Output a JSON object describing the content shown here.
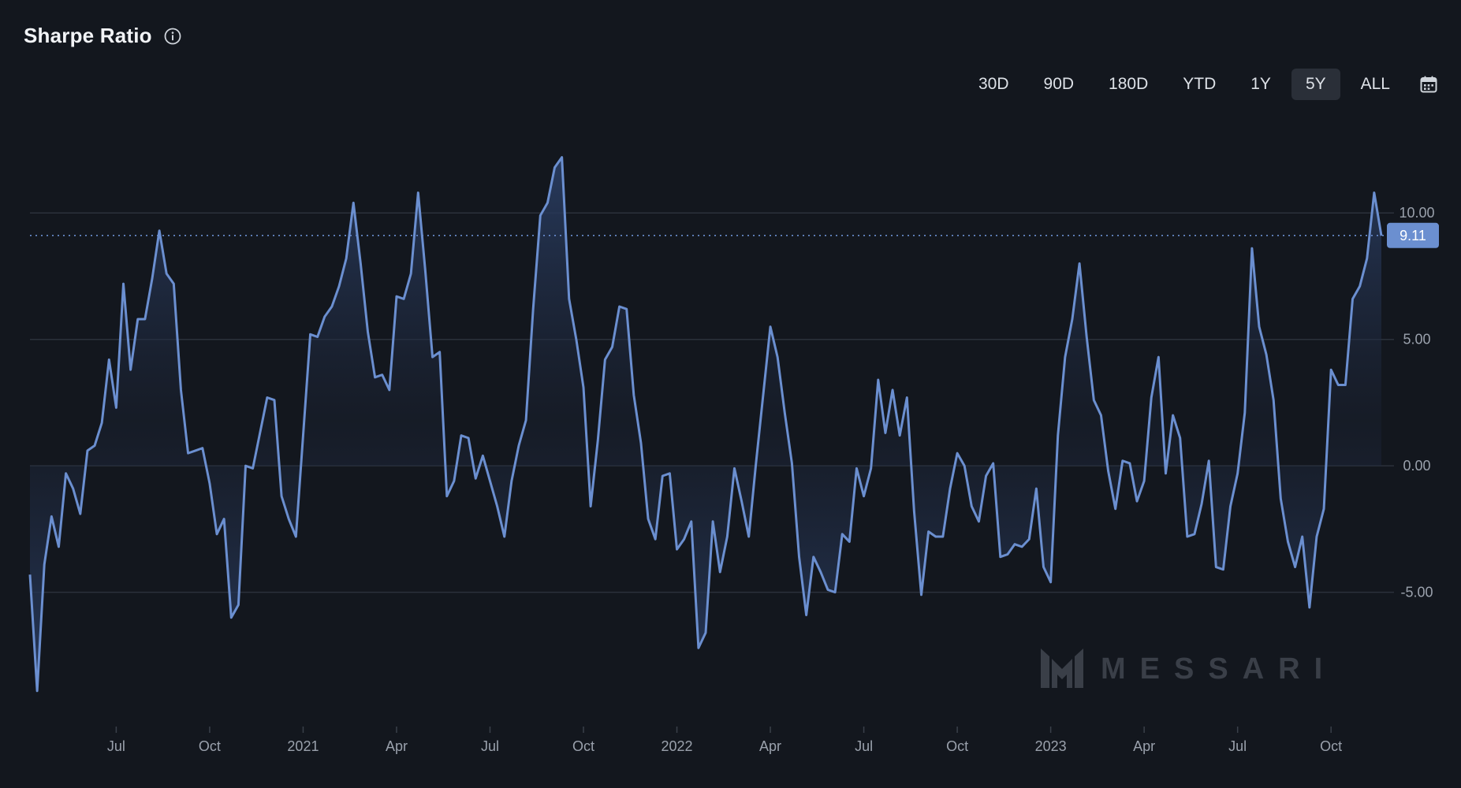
{
  "header": {
    "title": "Sharpe Ratio"
  },
  "range_buttons": [
    {
      "label": "30D",
      "active": false
    },
    {
      "label": "90D",
      "active": false
    },
    {
      "label": "180D",
      "active": false
    },
    {
      "label": "YTD",
      "active": false
    },
    {
      "label": "1Y",
      "active": false
    },
    {
      "label": "5Y",
      "active": true
    },
    {
      "label": "ALL",
      "active": false
    }
  ],
  "watermark": "MESSARI",
  "colors": {
    "background": "#13171e",
    "line": "#6b8fd0",
    "fill_top": "#2a3e64",
    "grid": "#2b313b",
    "badge": "#6b8fd0"
  },
  "chart_data": {
    "type": "area",
    "title": "Sharpe Ratio",
    "ylim": [
      -9,
      12.5
    ],
    "y_ticks": [
      {
        "value": 10,
        "label": "10.00"
      },
      {
        "value": 5,
        "label": "5.00"
      },
      {
        "value": 0,
        "label": "0.00"
      },
      {
        "value": -5,
        "label": "-5.00"
      }
    ],
    "x_ticks": [
      {
        "index": 12,
        "label": "Jul"
      },
      {
        "index": 25,
        "label": "Oct"
      },
      {
        "index": 38,
        "label": "2021"
      },
      {
        "index": 51,
        "label": "Apr"
      },
      {
        "index": 64,
        "label": "Jul"
      },
      {
        "index": 77,
        "label": "Oct"
      },
      {
        "index": 90,
        "label": "2022"
      },
      {
        "index": 103,
        "label": "Apr"
      },
      {
        "index": 116,
        "label": "Jul"
      },
      {
        "index": 129,
        "label": "Oct"
      },
      {
        "index": 142,
        "label": "2023"
      },
      {
        "index": 155,
        "label": "Apr"
      },
      {
        "index": 168,
        "label": "Jul"
      },
      {
        "index": 181,
        "label": "Oct"
      }
    ],
    "current_value": 9.11,
    "current_label": "9.11",
    "series": [
      {
        "name": "Sharpe Ratio",
        "values": [
          -4.3,
          -8.9,
          -3.9,
          -2.0,
          -3.2,
          -0.3,
          -0.9,
          -1.9,
          0.6,
          0.8,
          1.7,
          4.2,
          2.3,
          7.2,
          3.8,
          5.8,
          5.8,
          7.4,
          9.3,
          7.6,
          7.2,
          3.0,
          0.5,
          0.6,
          0.7,
          -0.7,
          -2.7,
          -2.1,
          -6.0,
          -5.5,
          0.0,
          -0.1,
          1.3,
          2.7,
          2.6,
          -1.2,
          -2.1,
          -2.8,
          1.2,
          5.2,
          5.1,
          5.9,
          6.3,
          7.1,
          8.2,
          10.4,
          8.0,
          5.3,
          3.5,
          3.6,
          3.0,
          6.7,
          6.6,
          7.6,
          10.8,
          7.7,
          4.3,
          4.5,
          -1.2,
          -0.6,
          1.2,
          1.1,
          -0.5,
          0.4,
          -0.6,
          -1.6,
          -2.8,
          -0.6,
          0.8,
          1.8,
          6.2,
          9.9,
          10.4,
          11.8,
          12.2,
          6.6,
          5.0,
          3.1,
          -1.6,
          1.0,
          4.2,
          4.7,
          6.3,
          6.2,
          2.8,
          0.9,
          -2.1,
          -2.9,
          -0.4,
          -0.3,
          -3.3,
          -2.9,
          -2.2,
          -7.2,
          -6.6,
          -2.2,
          -4.2,
          -2.8,
          -0.1,
          -1.4,
          -2.8,
          0.1,
          2.8,
          5.5,
          4.3,
          2.1,
          0.1,
          -3.6,
          -5.9,
          -3.6,
          -4.2,
          -4.9,
          -5.0,
          -2.7,
          -3.0,
          -0.1,
          -1.2,
          -0.1,
          3.4,
          1.3,
          3.0,
          1.2,
          2.7,
          -1.8,
          -5.1,
          -2.6,
          -2.8,
          -2.8,
          -0.9,
          0.5,
          0.0,
          -1.6,
          -2.2,
          -0.4,
          0.1,
          -3.6,
          -3.5,
          -3.1,
          -3.2,
          -2.9,
          -0.9,
          -4.0,
          -4.6,
          1.2,
          4.3,
          5.8,
          8.0,
          5.1,
          2.6,
          2.0,
          -0.2,
          -1.7,
          0.2,
          0.1,
          -1.4,
          -0.6,
          2.7,
          4.3,
          -0.3,
          2.0,
          1.1,
          -2.8,
          -2.7,
          -1.5,
          0.2,
          -4.0,
          -4.1,
          -1.6,
          -0.3,
          2.1,
          8.6,
          5.5,
          4.4,
          2.6,
          -1.3,
          -3.0,
          -4.0,
          -2.8,
          -5.6,
          -2.8,
          -1.7,
          3.8,
          3.2,
          3.2,
          6.6,
          7.1,
          8.2,
          10.8,
          9.1
        ]
      }
    ]
  }
}
